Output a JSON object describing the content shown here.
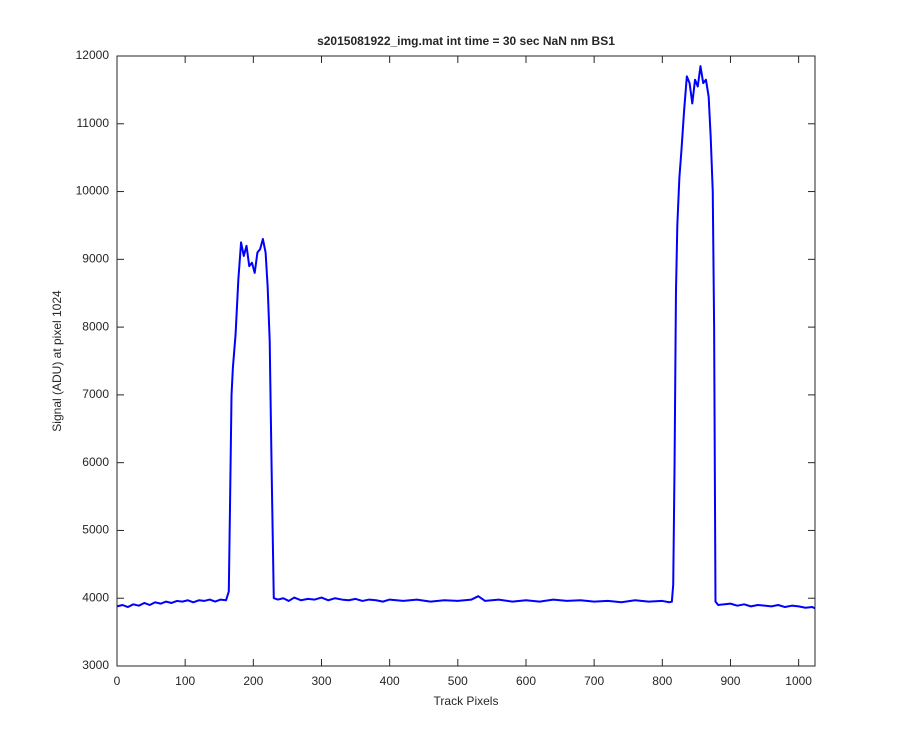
{
  "chart_data": {
    "type": "line",
    "title": "s2015081922_img.mat int time = 30 sec  NaN nm BS1",
    "xlabel": "Track Pixels",
    "ylabel": "Signal (ADU) at pixel 1024",
    "x": [
      0,
      8,
      16,
      24,
      32,
      40,
      48,
      56,
      64,
      72,
      80,
      88,
      96,
      104,
      112,
      120,
      128,
      136,
      144,
      152,
      160,
      164,
      166,
      168,
      170,
      174,
      178,
      182,
      186,
      190,
      194,
      198,
      202,
      206,
      210,
      214,
      218,
      221,
      224,
      227,
      230,
      236,
      244,
      252,
      260,
      270,
      280,
      290,
      300,
      310,
      320,
      330,
      340,
      350,
      360,
      370,
      380,
      390,
      400,
      420,
      440,
      460,
      480,
      500,
      520,
      530,
      540,
      560,
      580,
      600,
      620,
      640,
      660,
      680,
      700,
      720,
      740,
      760,
      780,
      800,
      810,
      814,
      816,
      818,
      820,
      822,
      825,
      828,
      832,
      836,
      840,
      844,
      848,
      852,
      856,
      860,
      864,
      868,
      871,
      874,
      876,
      878,
      882,
      890,
      900,
      910,
      920,
      930,
      940,
      950,
      960,
      970,
      980,
      990,
      1000,
      1010,
      1020,
      1024
    ],
    "series": [
      {
        "color": "#0000ff",
        "values": [
          3880,
          3900,
          3870,
          3910,
          3890,
          3930,
          3900,
          3940,
          3920,
          3950,
          3930,
          3960,
          3950,
          3970,
          3940,
          3970,
          3960,
          3980,
          3950,
          3980,
          3970,
          4100,
          5500,
          7000,
          7400,
          7900,
          8700,
          9250,
          9050,
          9200,
          8900,
          8950,
          8800,
          9100,
          9150,
          9300,
          9100,
          8600,
          7800,
          5800,
          4000,
          3980,
          4000,
          3960,
          4010,
          3970,
          3990,
          3980,
          4010,
          3970,
          4000,
          3980,
          3970,
          3990,
          3960,
          3980,
          3970,
          3950,
          3980,
          3960,
          3980,
          3950,
          3970,
          3960,
          3980,
          4030,
          3960,
          3980,
          3950,
          3970,
          3950,
          3980,
          3960,
          3970,
          3950,
          3960,
          3940,
          3970,
          3950,
          3960,
          3940,
          3950,
          4200,
          6000,
          8500,
          9500,
          10200,
          10600,
          11200,
          11700,
          11600,
          11300,
          11650,
          11550,
          11850,
          11600,
          11650,
          11400,
          10800,
          10000,
          8000,
          3950,
          3900,
          3910,
          3920,
          3890,
          3910,
          3880,
          3900,
          3890,
          3880,
          3900,
          3870,
          3890,
          3880,
          3860,
          3870,
          3850
        ]
      }
    ],
    "xlim": [
      0,
      1024
    ],
    "xticks": [
      0,
      100,
      200,
      300,
      400,
      500,
      600,
      700,
      800,
      900,
      1000
    ],
    "ylim": [
      3000,
      12000
    ],
    "yticks": [
      3000,
      4000,
      5000,
      6000,
      7000,
      8000,
      9000,
      10000,
      11000,
      12000
    ]
  }
}
